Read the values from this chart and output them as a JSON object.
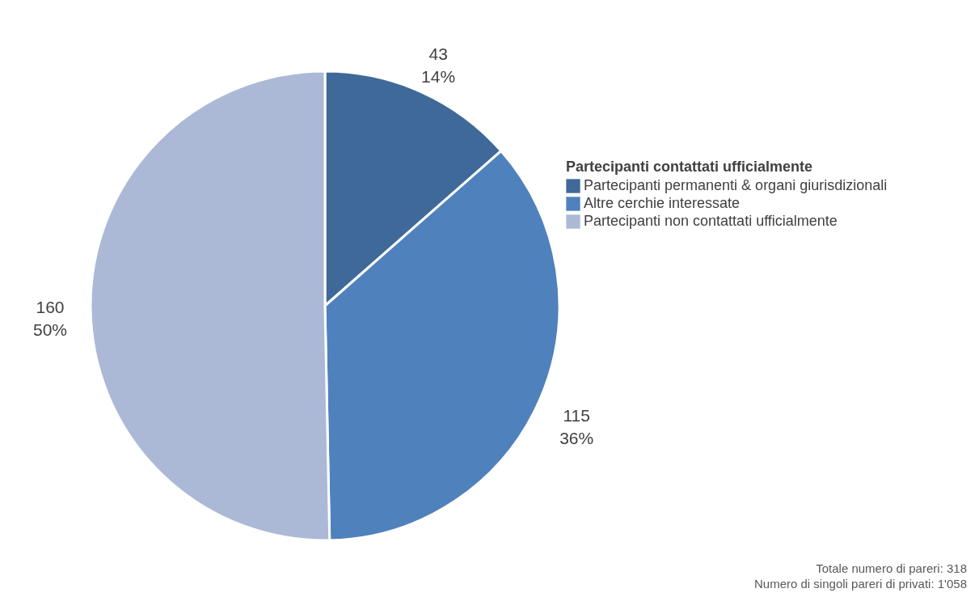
{
  "chart_data": {
    "type": "pie",
    "legend_title": "Partecipanti contattati ufficialmente",
    "legend": "right",
    "categories": [
      "Partecipanti permanenti & organi giurisdizionali",
      "Altre cerchie interessate",
      "Partecipanti non contattati ufficialmente"
    ],
    "values": [
      43,
      115,
      160
    ],
    "colors": [
      "#3f6999",
      "#4f81bd",
      "#abb9d6"
    ],
    "value_labels": [
      "43\n14%",
      "115\n36%",
      "160\n50%"
    ],
    "annotations": [
      "Totale numero di pareri: 318",
      "Numero di singoli pareri di privati: 1'058"
    ]
  }
}
